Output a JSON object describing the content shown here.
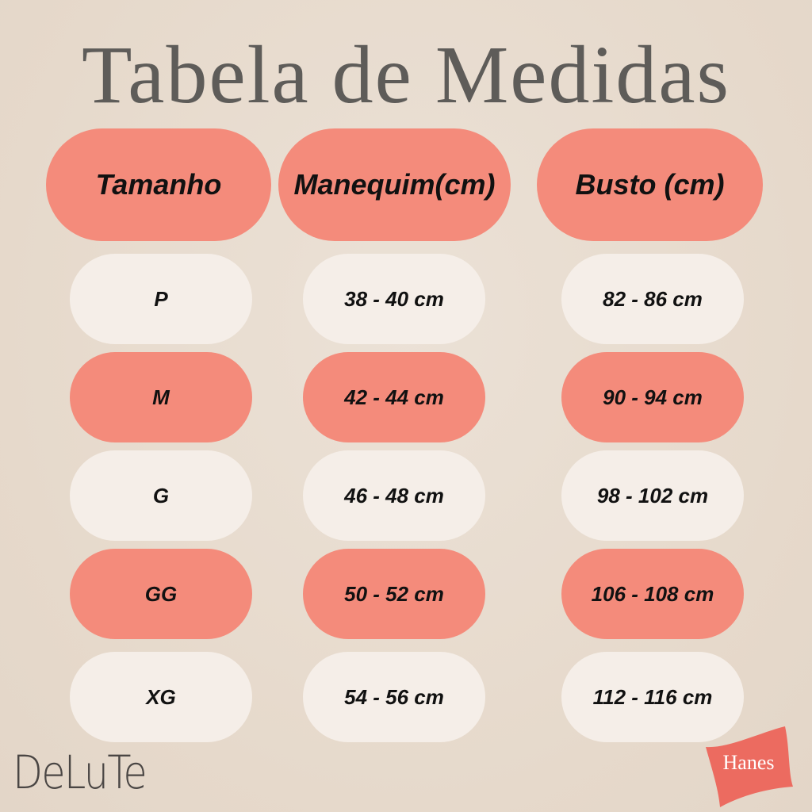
{
  "title": "Tabela de Medidas",
  "headers": [
    "Tamanho",
    "Manequim(cm)",
    "Busto (cm)"
  ],
  "rows": [
    {
      "tamanho": "P",
      "manequim": "38 - 40 cm",
      "busto": "82 - 86 cm",
      "color": "#f5eee8"
    },
    {
      "tamanho": "M",
      "manequim": "42 - 44 cm",
      "busto": "90 - 94 cm",
      "color": "#f48b7b"
    },
    {
      "tamanho": "G",
      "manequim": "46 - 48 cm",
      "busto": "98 - 102 cm",
      "color": "#f5eee8"
    },
    {
      "tamanho": "GG",
      "manequim": "50 - 52 cm",
      "busto": "106 - 108 cm",
      "color": "#f48b7b"
    },
    {
      "tamanho": "XG",
      "manequim": "54 - 56 cm",
      "busto": "112 - 116 cm",
      "color": "#f5eee8"
    }
  ],
  "logos": {
    "left": "DeLuTe",
    "right": "Hanes"
  },
  "colors": {
    "accent": "#f48b7b",
    "cream": "#f5eee8",
    "title": "#5e5c59",
    "background": "#e8dccf"
  }
}
